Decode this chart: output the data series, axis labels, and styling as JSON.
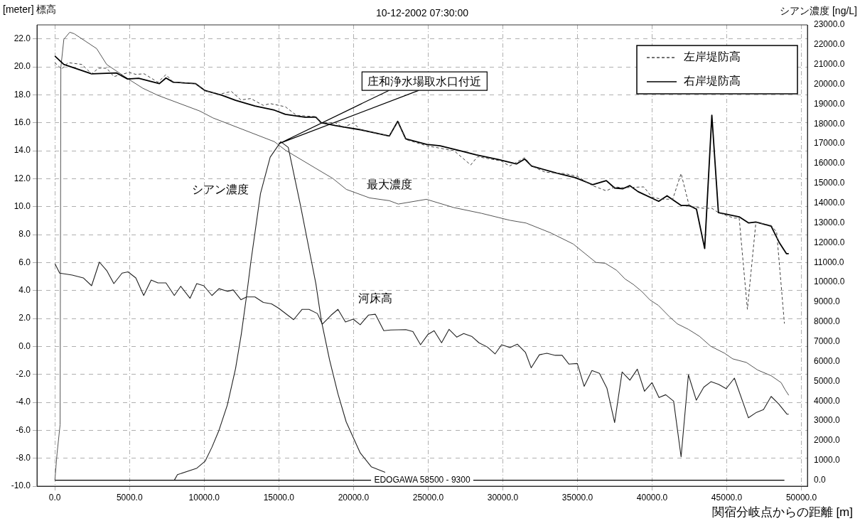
{
  "chart_data": {
    "type": "line",
    "title": "10-12-2002 07:30:00",
    "xlabel": "関宿分岐点からの距離 [m]",
    "ylabel": "[meter] 標高",
    "y2label": "シアン濃度 [ng/L]",
    "xlim": [
      -1200,
      50400
    ],
    "xticks": [
      {
        "value": 0,
        "label": "0.0"
      },
      {
        "value": 5000,
        "label": "5000.0"
      },
      {
        "value": 10000,
        "label": "10000.0"
      },
      {
        "value": 15000,
        "label": "15000.0"
      },
      {
        "value": 20000,
        "label": "20000.0"
      },
      {
        "value": 25000,
        "label": "25000.0"
      },
      {
        "value": 30000,
        "label": "30000.0"
      },
      {
        "value": 35000,
        "label": "35000.0"
      },
      {
        "value": 40000,
        "label": "40000.0"
      },
      {
        "value": 45000,
        "label": "45000.0"
      },
      {
        "value": 50000,
        "label": "50000.0"
      }
    ],
    "ylim": [
      -10,
      23
    ],
    "yticks": [
      {
        "value": -10,
        "label": "-10.0"
      },
      {
        "value": -8,
        "label": "-8.0"
      },
      {
        "value": -6,
        "label": "-6.0"
      },
      {
        "value": -4,
        "label": "-4.0"
      },
      {
        "value": -2,
        "label": "-2.0"
      },
      {
        "value": 0,
        "label": "0.0"
      },
      {
        "value": 2,
        "label": "2.0"
      },
      {
        "value": 4,
        "label": "4.0"
      },
      {
        "value": 6,
        "label": "6.0"
      },
      {
        "value": 8,
        "label": "8.0"
      },
      {
        "value": 10,
        "label": "10.0"
      },
      {
        "value": 12,
        "label": "12.0"
      },
      {
        "value": 14,
        "label": "14.0"
      },
      {
        "value": 16,
        "label": "16.0"
      },
      {
        "value": 18,
        "label": "18.0"
      },
      {
        "value": 20,
        "label": "20.0"
      },
      {
        "value": 22,
        "label": "22.0"
      }
    ],
    "y2lim": [
      -300,
      23000
    ],
    "y2ticks": [
      {
        "value": 0,
        "label": "0.0"
      },
      {
        "value": 1000,
        "label": "1000.0"
      },
      {
        "value": 2000,
        "label": "2000.0"
      },
      {
        "value": 3000,
        "label": "3000.0"
      },
      {
        "value": 4000,
        "label": "4000.0"
      },
      {
        "value": 5000,
        "label": "5000.0"
      },
      {
        "value": 6000,
        "label": "6000.0"
      },
      {
        "value": 7000,
        "label": "7000.0"
      },
      {
        "value": 8000,
        "label": "8000.0"
      },
      {
        "value": 9000,
        "label": "9000.0"
      },
      {
        "value": 10000,
        "label": "10000.0"
      },
      {
        "value": 11000,
        "label": "11000.0"
      },
      {
        "value": 12000,
        "label": "12000.0"
      },
      {
        "value": 13000,
        "label": "13000.0"
      },
      {
        "value": 14000,
        "label": "14000.0"
      },
      {
        "value": 15000,
        "label": "15000.0"
      },
      {
        "value": 16000,
        "label": "16000.0"
      },
      {
        "value": 17000,
        "label": "17000.0"
      },
      {
        "value": 18000,
        "label": "18000.0"
      },
      {
        "value": 19000,
        "label": "19000.0"
      },
      {
        "value": 20000,
        "label": "20000.0"
      },
      {
        "value": 21000,
        "label": "21000.0"
      },
      {
        "value": 22000,
        "label": "22000.0"
      },
      {
        "value": 23000,
        "label": "23000.0"
      }
    ],
    "grid": true,
    "legend": "top right",
    "marker": "none",
    "series": [
      {
        "name": "左岸堤防高",
        "color": "#444444",
        "line_style": "dashed",
        "x": [
          0,
          450,
          880,
          1810,
          2460,
          2920,
          3470,
          3950,
          4960,
          5420,
          5980,
          6900,
          7440,
          7930,
          9410,
          10060,
          10990,
          11820,
          12460,
          13120,
          13960,
          14420,
          15440,
          16180,
          16930,
          17480,
          17840,
          18780,
          19320,
          19990,
          20450,
          22400,
          22960,
          23500,
          24900,
          26730,
          27850,
          28310,
          29880,
          30450,
          31470,
          31930,
          32850,
          34160,
          35000,
          36010,
          36930,
          37490,
          38050,
          39440,
          39990,
          40630,
          41380,
          41940,
          42490,
          43430,
          44000,
          44440,
          45470,
          45830,
          46380,
          46950,
          47970,
          48340,
          48860
        ],
        "values": [
          20.3,
          19.84,
          20.3,
          20.17,
          19.5,
          19.9,
          19.9,
          19.3,
          19.6,
          19.46,
          19.5,
          18.9,
          19.44,
          18.9,
          18.8,
          18.3,
          18.03,
          18.24,
          17.63,
          17.73,
          17.24,
          17.37,
          17.14,
          16.53,
          16.47,
          16.44,
          16.0,
          16.0,
          15.65,
          16.0,
          15.5,
          15.05,
          16.1,
          14.8,
          14.35,
          14.0,
          12.98,
          13.57,
          13.27,
          12.9,
          13.5,
          12.9,
          12.46,
          12.36,
          12.16,
          11.5,
          11.13,
          11.41,
          11.35,
          11.41,
          10.68,
          10.53,
          10.53,
          12.37,
          10.02,
          9.88,
          9.88,
          9.57,
          9.18,
          9.18,
          2.65,
          8.88,
          8.65,
          8.18,
          1.63
        ]
      },
      {
        "name": "右岸堤防高",
        "color": "#000000",
        "line_style": "solid",
        "x": [
          0,
          600,
          2460,
          4120,
          4870,
          5610,
          7000,
          7440,
          7930,
          9410,
          10060,
          11170,
          12100,
          13400,
          14700,
          15440,
          16740,
          17480,
          17840,
          18780,
          19320,
          20450,
          22400,
          22960,
          23500,
          24900,
          25800,
          27290,
          28220,
          29690,
          30910,
          31470,
          31930,
          33580,
          34890,
          36010,
          36930,
          37490,
          38050,
          38510,
          39060,
          40440,
          41000,
          41940,
          42490,
          42970,
          43520,
          44000,
          44440,
          45830,
          46470,
          46950,
          47970,
          48530,
          49000,
          49150
        ],
        "values": [
          20.77,
          20.17,
          19.5,
          19.56,
          19.13,
          19.18,
          18.8,
          19.2,
          18.9,
          18.8,
          18.3,
          17.97,
          17.6,
          17.2,
          16.9,
          16.6,
          16.4,
          16.4,
          16.0,
          15.8,
          15.7,
          15.5,
          15.05,
          16.1,
          14.85,
          14.45,
          14.35,
          13.95,
          13.7,
          13.37,
          13.05,
          13.4,
          12.9,
          12.4,
          12.06,
          11.57,
          11.86,
          11.33,
          11.28,
          11.5,
          11.07,
          10.38,
          10.77,
          10.08,
          10.08,
          9.82,
          7.0,
          16.54,
          9.57,
          9.27,
          8.83,
          8.9,
          8.6,
          7.4,
          6.63,
          6.63
        ]
      },
      {
        "name": "河床高",
        "color": "#222222",
        "line_style": "solid",
        "x": [
          0,
          320,
          1160,
          1900,
          2460,
          2980,
          3470,
          3950,
          4500,
          4900,
          5420,
          5950,
          6450,
          6900,
          7440,
          8000,
          8430,
          9050,
          9500,
          9970,
          10520,
          10990,
          11550,
          11940,
          12460,
          12840,
          13400,
          13960,
          14510,
          14980,
          15990,
          16560,
          17020,
          17580,
          17910,
          18510,
          18960,
          19460,
          19980,
          20450,
          21000,
          21460,
          22030,
          22490,
          23510,
          23980,
          24490,
          24990,
          25400,
          25900,
          26400,
          26920,
          27380,
          27940,
          28400,
          28960,
          29480,
          29920,
          30480,
          30970,
          31520,
          31900,
          32450,
          32950,
          33510,
          33970,
          34430,
          34990,
          35450,
          35970,
          36470,
          36970,
          37490,
          37990,
          38510,
          39010,
          39490,
          39990,
          40460,
          40910,
          41440,
          41940,
          42430,
          42960,
          43460,
          43950,
          44450,
          44960,
          45510,
          46450,
          46990,
          47460,
          47970,
          48480,
          49030,
          49150
        ],
        "values": [
          5.93,
          5.24,
          5.1,
          4.9,
          4.34,
          6.03,
          5.43,
          4.49,
          5.24,
          5.33,
          4.9,
          3.64,
          4.74,
          4.54,
          4.54,
          3.64,
          4.3,
          3.44,
          4.49,
          4.34,
          3.64,
          4.13,
          3.94,
          4.04,
          3.34,
          3.54,
          3.54,
          3.14,
          3.04,
          2.74,
          1.91,
          2.65,
          2.65,
          2.35,
          1.59,
          2.24,
          2.65,
          1.75,
          1.95,
          1.55,
          2.24,
          2.3,
          1.12,
          1.17,
          1.2,
          1.06,
          0.12,
          0.86,
          1.12,
          0.26,
          1.22,
          0.66,
          0.92,
          0.7,
          0.26,
          -0.04,
          -0.54,
          0.12,
          -0.08,
          0.16,
          -0.44,
          -1.53,
          -0.6,
          -0.49,
          -0.64,
          -0.64,
          -1.27,
          -1.22,
          -2.86,
          -1.73,
          -1.93,
          -2.98,
          -5.45,
          -1.83,
          -2.42,
          -1.63,
          -3.21,
          -2.59,
          -3.66,
          -3.46,
          -3.92,
          -7.9,
          -2.03,
          -3.85,
          -2.92,
          -2.52,
          -2.72,
          -3.02,
          -2.27,
          -5.11,
          -4.72,
          -4.52,
          -3.58,
          -4.12,
          -4.85,
          -4.85
        ]
      },
      {
        "name": "最大濃度",
        "color": "#555555",
        "line_style": "solid",
        "axis": "y2",
        "x": [
          0,
          150,
          350,
          400,
          600,
          1000,
          1300,
          2800,
          3470,
          4870,
          5890,
          6900,
          9700,
          10590,
          14700,
          15440,
          17480,
          18600,
          19520,
          21080,
          22400,
          23000,
          24880,
          26730,
          28580,
          30470,
          31560,
          33220,
          34720,
          36240,
          36860,
          37630,
          38180,
          38740,
          39300,
          39850,
          40420,
          41160,
          41690,
          42430,
          43170,
          43920,
          44840,
          45400,
          46310,
          47060,
          47970,
          48640,
          48910,
          49150
        ],
        "values": [
          0,
          1380,
          2800,
          20850,
          22270,
          22630,
          22550,
          21800,
          21000,
          20290,
          19800,
          19440,
          18650,
          18300,
          17100,
          16670,
          15750,
          15250,
          14690,
          14260,
          14120,
          13950,
          14190,
          13770,
          13480,
          13130,
          12990,
          12490,
          11930,
          11000,
          10960,
          10600,
          10170,
          9890,
          9540,
          9110,
          8830,
          8260,
          7900,
          7620,
          7270,
          6770,
          6420,
          6130,
          5950,
          5570,
          5280,
          4930,
          4570,
          4290
        ]
      },
      {
        "name": "シアン濃度",
        "color": "#222222",
        "line_style": "solid",
        "axis": "y2",
        "x": [
          8000,
          8210,
          9510,
          10060,
          10520,
          10990,
          11550,
          12100,
          12480,
          12840,
          13120,
          13770,
          14420,
          15130,
          15630,
          16460,
          17200,
          17480,
          17850,
          18400,
          18960,
          19510,
          20450,
          21190,
          22120
        ],
        "values": [
          0,
          280,
          610,
          960,
          1670,
          2520,
          3800,
          5640,
          7350,
          9320,
          11000,
          14480,
          16320,
          17100,
          16810,
          13840,
          11000,
          9930,
          8050,
          6070,
          4360,
          2950,
          1380,
          680,
          400
        ]
      }
    ],
    "ref_lines": [
      {
        "axis": "y2",
        "value": 0,
        "label": "EDOGAWA 58500 - 9300"
      }
    ],
    "annotations": [
      {
        "text": "庄和浄水場取水口付近",
        "x": 15000,
        "y": 14.5
      }
    ]
  }
}
